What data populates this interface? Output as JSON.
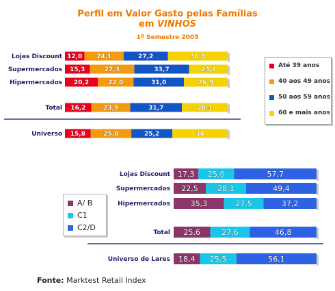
{
  "header": {
    "title_line1": "Perfil em Valor Gasto pelas Famílias",
    "title_line2_prefix": "em ",
    "title_line2_emph": "VINHOS",
    "subtitle": "1º Semestre 2005"
  },
  "chart_data": [
    {
      "type": "bar",
      "orientation": "horizontal",
      "stacked": "100%",
      "categories": [
        "Lojas Discount",
        "Supermercados",
        "Hipermercados",
        "Total",
        "Universo"
      ],
      "series": [
        {
          "name": "Até 39 anos",
          "color": "#e8001c",
          "values": [
            12.0,
            15.3,
            20.2,
            16.2,
            15.8
          ],
          "labels": [
            "12,0",
            "15,3",
            "20,2",
            "16,2",
            "15,8"
          ]
        },
        {
          "name": "40 aos 49 anos",
          "color": "#f49a0e",
          "values": [
            24.1,
            27.3,
            22.0,
            23.9,
            25.0
          ],
          "labels": [
            "24,1",
            "27,3",
            "22,0",
            "23,9",
            "25,0"
          ]
        },
        {
          "name": "50 aos 59 anos",
          "color": "#1455c6",
          "values": [
            27.2,
            33.7,
            31.0,
            31.7,
            25.2
          ],
          "labels": [
            "27,2",
            "33,7",
            "31,0",
            "31,7",
            "25,2"
          ]
        },
        {
          "name": "60 e mais anos",
          "color": "#f6d200",
          "values": [
            36.8,
            23.7,
            26.9,
            28.1,
            34.0
          ],
          "labels": [
            "36,8",
            "23,7",
            "26,9",
            "28,1",
            "34"
          ]
        }
      ]
    },
    {
      "type": "bar",
      "orientation": "horizontal",
      "stacked": "100%",
      "categories": [
        "Lojas Discount",
        "Supermercados",
        "Hipermercados",
        "Total",
        "Universo de Lares"
      ],
      "series": [
        {
          "name": "A/ B",
          "color": "#8b3568",
          "values": [
            17.3,
            22.5,
            35.3,
            25.6,
            18.4
          ],
          "labels": [
            "17,3",
            "22,5",
            "35,3",
            "25,6",
            "18,4"
          ]
        },
        {
          "name": "C1",
          "color": "#18c6ea",
          "values": [
            25.0,
            28.1,
            27.5,
            27.6,
            25.5
          ],
          "labels": [
            "25,0",
            "28,1",
            "27,5",
            "27,6",
            "25,5"
          ]
        },
        {
          "name": "C2/D",
          "color": "#2e62e2",
          "values": [
            57.7,
            49.4,
            37.2,
            46.8,
            56.1
          ],
          "labels": [
            "57,7",
            "49,4",
            "37,2",
            "46,8",
            "56,1"
          ]
        }
      ]
    }
  ],
  "source": {
    "label": "Fonte:",
    "text": " Marktest Retail Index"
  }
}
